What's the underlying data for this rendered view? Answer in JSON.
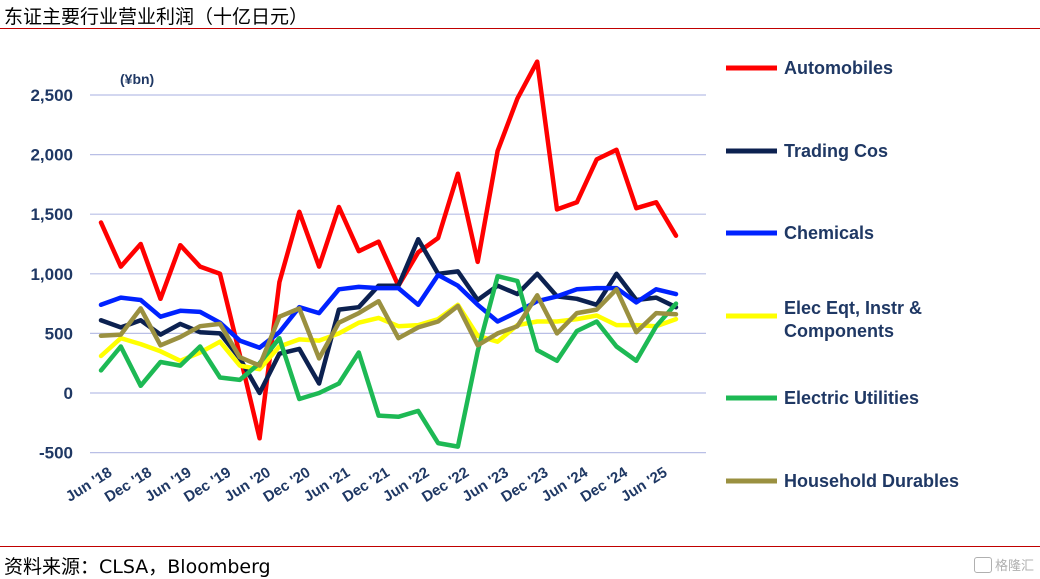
{
  "header": {
    "title": "东证主要行业营业利润（十亿日元）"
  },
  "footer": {
    "source": "资料来源：CLSA，Bloomberg",
    "watermark": "格隆汇"
  },
  "chart_data": {
    "type": "line",
    "unit_label": "(¥bn)",
    "ylim": [
      -500,
      2700
    ],
    "yticks": [
      -500,
      0,
      500,
      1000,
      1500,
      2000,
      2500
    ],
    "ytick_labels": [
      "-500",
      "0",
      "500",
      "1,000",
      "1,500",
      "2,000",
      "2,500"
    ],
    "grid": true,
    "legend_position": "right",
    "x": [
      "Jun '18",
      "Sep '18",
      "Dec '18",
      "Mar '19",
      "Jun '19",
      "Sep '19",
      "Dec '19",
      "Mar '20",
      "Jun '20",
      "Sep '20",
      "Dec '20",
      "Mar '21",
      "Jun '21",
      "Sep '21",
      "Dec '21",
      "Mar '22",
      "Jun '22",
      "Sep '22",
      "Dec '22",
      "Mar '23",
      "Jun '23",
      "Sep '23",
      "Dec '23",
      "Mar '24",
      "Jun '24",
      "Sep '24",
      "Dec '24",
      "Mar '25",
      "Jun '25",
      "Sep '25"
    ],
    "xtick_labels": [
      "Jun '18",
      "Dec '18",
      "Jun '19",
      "Dec '19",
      "Jun '20",
      "Dec '20",
      "Jun '21",
      "Dec '21",
      "Jun '22",
      "Dec '22",
      "Jun '23",
      "Dec '23",
      "Jun '24",
      "Dec '24",
      "Jun '25"
    ],
    "series": [
      {
        "name": "Automobiles",
        "color": "#ff0000",
        "values": [
          1430,
          1060,
          1250,
          790,
          1240,
          1060,
          1000,
          320,
          -380,
          930,
          1520,
          1060,
          1560,
          1190,
          1270,
          900,
          1180,
          1300,
          1840,
          1100,
          2030,
          2470,
          2780,
          1540,
          1600,
          1960,
          2040,
          1550,
          1600,
          1320
        ]
      },
      {
        "name": "Trading Cos",
        "color": "#0c2150",
        "values": [
          610,
          550,
          610,
          490,
          580,
          510,
          500,
          290,
          0,
          330,
          370,
          80,
          700,
          720,
          900,
          900,
          1290,
          1000,
          1020,
          780,
          900,
          830,
          1000,
          810,
          790,
          740,
          1000,
          780,
          800,
          720
        ]
      },
      {
        "name": "Chemicals",
        "color": "#0022ff",
        "values": [
          740,
          800,
          780,
          640,
          690,
          680,
          590,
          440,
          380,
          510,
          720,
          670,
          870,
          890,
          880,
          880,
          740,
          990,
          900,
          740,
          600,
          680,
          770,
          810,
          870,
          880,
          880,
          760,
          870,
          830
        ]
      },
      {
        "name": "Elec Eqt, Instr & Components",
        "color": "#ffff00",
        "values": [
          310,
          460,
          410,
          350,
          270,
          340,
          430,
          230,
          200,
          390,
          450,
          440,
          500,
          590,
          630,
          560,
          570,
          620,
          740,
          480,
          430,
          570,
          600,
          600,
          620,
          650,
          570,
          570,
          560,
          620
        ]
      },
      {
        "name": "Electric Utilities",
        "color": "#1db954",
        "values": [
          190,
          390,
          60,
          260,
          230,
          390,
          130,
          110,
          250,
          460,
          -50,
          0,
          80,
          340,
          -190,
          -200,
          -150,
          -420,
          -450,
          350,
          980,
          940,
          360,
          270,
          520,
          600,
          390,
          270,
          560,
          750
        ]
      },
      {
        "name": "Household Durables",
        "color": "#9a9040",
        "values": [
          480,
          490,
          710,
          400,
          470,
          560,
          580,
          300,
          230,
          640,
          710,
          290,
          590,
          670,
          770,
          460,
          550,
          600,
          730,
          400,
          500,
          560,
          820,
          500,
          670,
          700,
          870,
          510,
          670,
          660
        ]
      }
    ]
  }
}
